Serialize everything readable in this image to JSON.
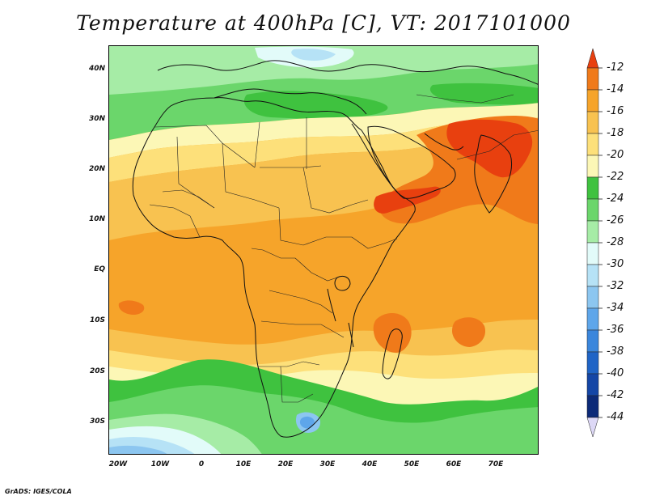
{
  "title": "Temperature at 400hPa [C], VT: 2017101000",
  "credit": "GrADS: IGES/COLA",
  "map": {
    "variable": "Temperature",
    "level": "400hPa",
    "units": "C",
    "valid_time": "2017101000",
    "lon_labels": [
      "20W",
      "10W",
      "0",
      "10E",
      "20E",
      "30E",
      "40E",
      "50E",
      "60E",
      "70E"
    ],
    "lat_labels": [
      "40N",
      "30N",
      "20N",
      "10N",
      "EQ",
      "10S",
      "20S",
      "30S"
    ]
  },
  "colorbar": {
    "labels": [
      "-12",
      "-14",
      "-16",
      "-18",
      "-20",
      "-22",
      "-24",
      "-26",
      "-28",
      "-30",
      "-32",
      "-34",
      "-36",
      "-38",
      "-40",
      "-42",
      "-44"
    ],
    "bins": [
      {
        "range": "above -12",
        "color": "#e8400f"
      },
      {
        "range": "-14 to -12",
        "color": "#f07a1a"
      },
      {
        "range": "-16 to -14",
        "color": "#f6a42a"
      },
      {
        "range": "-18 to -16",
        "color": "#f8c250"
      },
      {
        "range": "-20 to -18",
        "color": "#fde07a"
      },
      {
        "range": "-22 to -20",
        "color": "#fcf7b6"
      },
      {
        "range": "-24 to -22",
        "color": "#3fc23f"
      },
      {
        "range": "-26 to -24",
        "color": "#6bd66b"
      },
      {
        "range": "-28 to -26",
        "color": "#a6eca6"
      },
      {
        "range": "-30 to -28",
        "color": "#e2fbf9"
      },
      {
        "range": "-32 to -30",
        "color": "#b6e2f6"
      },
      {
        "range": "-34 to -32",
        "color": "#8cc6f0"
      },
      {
        "range": "-36 to -34",
        "color": "#5ea6ea"
      },
      {
        "range": "-38 to -36",
        "color": "#3a86dc"
      },
      {
        "range": "-40 to -38",
        "color": "#1f64c6"
      },
      {
        "range": "-42 to -40",
        "color": "#1446a6"
      },
      {
        "range": "-44 to -42",
        "color": "#0c2a78"
      },
      {
        "range": "below -44",
        "color": "#ddd8f6"
      }
    ]
  }
}
